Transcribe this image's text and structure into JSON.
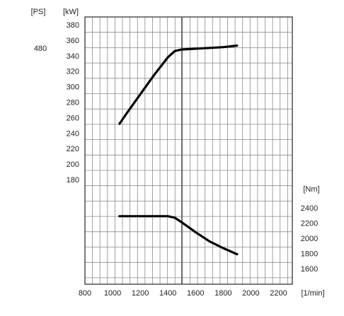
{
  "chart_data": {
    "type": "line",
    "units": {
      "ps": "[PS]",
      "kw": "[kW]",
      "nm": "[Nm]",
      "rpm": "[1/min]"
    },
    "x_ticks": [
      800,
      1000,
      1200,
      1400,
      1600,
      1800,
      2000,
      2200
    ],
    "xlim": [
      800,
      2300
    ],
    "ps_ticks": [
      480
    ],
    "kw_ticks": [
      180,
      200,
      220,
      240,
      260,
      280,
      300,
      320,
      340,
      360,
      380
    ],
    "kw_ylim": [
      180,
      390
    ],
    "nm_ticks": [
      1600,
      1800,
      2000,
      2200,
      2400
    ],
    "nm_ylim": [
      1500,
      2500
    ],
    "grid": true,
    "power_curve": {
      "x": [
        1050,
        1100,
        1200,
        1300,
        1400,
        1450,
        1500,
        1600,
        1700,
        1800,
        1900
      ],
      "y": [
        252,
        265,
        290,
        315,
        338,
        346,
        348,
        349,
        350,
        351,
        353
      ]
    },
    "torque_curve": {
      "x": [
        1050,
        1200,
        1300,
        1400,
        1450,
        1500,
        1600,
        1700,
        1800,
        1900
      ],
      "y": [
        2290,
        2290,
        2290,
        2290,
        2270,
        2210,
        2080,
        1960,
        1870,
        1790
      ]
    }
  }
}
